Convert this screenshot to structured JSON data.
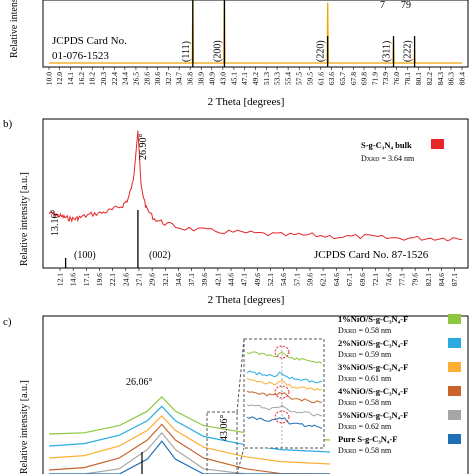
{
  "chart_data": [
    {
      "panel": "a)",
      "type": "line",
      "xlabel": "2 Theta [degrees]",
      "ylabel": "Relative intensity",
      "x_ticks": [
        "10.0",
        "12.0",
        "14.1",
        "16.2",
        "18.2",
        "20.3",
        "22.4",
        "24.4",
        "26.5",
        "28.6",
        "30.6",
        "32.7",
        "34.7",
        "36.8",
        "38.9",
        "40.9",
        "43.0",
        "45.1",
        "47.1",
        "49.2",
        "51.3",
        "53.3",
        "55.4",
        "57.5",
        "59.5",
        "61.6",
        "63.6",
        "65.7",
        "67.8",
        "69.8",
        "71.9",
        "73.9",
        "76.0",
        "78.1",
        "80.1",
        "82.2",
        "84.3",
        "86.3",
        "88.4"
      ],
      "xlim": [
        10.0,
        88.4
      ],
      "series": [
        {
          "color": "#f0a500",
          "x": [
            10,
            37.2,
            37.3,
            37.4,
            43.2,
            43.3,
            43.4,
            62.8,
            62.9,
            63.0,
            75.3,
            75.4,
            75.5,
            79.3,
            79.4,
            79.5,
            88.4
          ],
          "y": [
            0,
            0,
            1,
            0,
            0,
            1,
            0,
            0,
            0.9,
            0,
            0,
            0.35,
            0,
            0,
            0.2,
            0,
            0
          ]
        }
      ],
      "peak_labels": [
        "(111)",
        "(200)",
        "(220)",
        "(311)",
        "(222)"
      ],
      "peak_positions": [
        37.3,
        43.3,
        62.9,
        75.4,
        79.4
      ],
      "top_labels": [
        "7",
        "79"
      ],
      "reference": [
        "JCPDS Card No.",
        "01-076-1523"
      ]
    },
    {
      "panel": "b)",
      "type": "line",
      "xlabel": "2 Theta [degrees]",
      "ylabel": "Relative intensity [a.u.]",
      "x_ticks": [
        "12.1",
        "14.6",
        "17.1",
        "19.6",
        "22.1",
        "24.6",
        "27.1",
        "29.6",
        "32.1",
        "34.6",
        "37.1",
        "39.6",
        "42.1",
        "44.6",
        "47.1",
        "49.6",
        "52.1",
        "54.6",
        "57.1",
        "59.6",
        "62.1",
        "64.6",
        "67.1",
        "69.6",
        "72.1",
        "74.6",
        "77.1",
        "79.6",
        "82.1",
        "84.6",
        "87.1"
      ],
      "xlim": [
        10.0,
        88.5
      ],
      "annotations": [
        "13.16°",
        "26.90°"
      ],
      "peak_labels": [
        "(100)",
        "(002)"
      ],
      "peak_positions": [
        13.16,
        26.9
      ],
      "reference": "JCPDS Card No. 87-1526",
      "legend": {
        "name": "S-g-C₃N₄ bulk",
        "color": "#e8262a",
        "size": "D",
        "size_sub": "XRD",
        "size_value": " = 3.64 nm"
      },
      "series": [
        {
          "color": "#e8262a",
          "x": [
            10,
            11,
            12,
            13,
            14,
            15,
            16,
            18,
            20,
            22,
            24,
            25,
            26,
            26.9,
            27.5,
            28.5,
            30,
            32,
            35,
            40,
            45,
            50,
            55,
            60,
            65,
            70,
            75,
            80,
            85,
            88.5
          ],
          "y": [
            0.37,
            0.36,
            0.35,
            0.34,
            0.33,
            0.33,
            0.34,
            0.36,
            0.37,
            0.39,
            0.42,
            0.46,
            0.58,
            0.93,
            0.55,
            0.4,
            0.33,
            0.3,
            0.27,
            0.25,
            0.24,
            0.23,
            0.22,
            0.22,
            0.21,
            0.21,
            0.2,
            0.2,
            0.2,
            0.2
          ]
        }
      ]
    },
    {
      "panel": "c)",
      "type": "line",
      "ylabel": "Relative intensity [a.u.]",
      "annotations": [
        "26.06°",
        "43.06°"
      ],
      "legend": [
        {
          "name": "1%NiO/S-g-C₃N₄-F",
          "color": "#8dc63f",
          "size": "D",
          "size_sub": "XRD",
          "size_value": " = 0.58 nm"
        },
        {
          "name": "2%NiO/S-g-C₃N₄-F",
          "color": "#29abe2",
          "size": "D",
          "size_sub": "XRD",
          "size_value": " = 0.59 nm"
        },
        {
          "name": "3%NiO/S-g-C₃N₄-F",
          "color": "#fbb034",
          "size": "D",
          "size_sub": "XRD",
          "size_value": " = 0.61 nm"
        },
        {
          "name": "4%NiO/S-g-C₃N₄-F",
          "color": "#c8642a",
          "size": "D",
          "size_sub": "XRD",
          "size_value": " = 0.58 nm"
        },
        {
          "name": "5%NiO/S-g-C₃N₄-F",
          "color": "#a6a6a6",
          "size": "D",
          "size_sub": "XRD",
          "size_value": " = 0.62 nm"
        },
        {
          "name": "Pure S-g-C₃N₄-F",
          "color": "#1f6fb5",
          "size": "D",
          "size_sub": "XRD",
          "size_value": " = 0.58 nm"
        }
      ],
      "series": [
        {
          "color": "#8dc63f",
          "x": [
            10,
            15,
            20,
            24,
            26.06,
            28,
            32,
            38,
            43,
            50
          ],
          "y": [
            0.55,
            0.56,
            0.62,
            0.74,
            0.86,
            0.74,
            0.62,
            0.56,
            0.52,
            0.5
          ]
        },
        {
          "color": "#29abe2",
          "x": [
            10,
            15,
            20,
            24,
            26.06,
            28,
            32,
            38,
            43,
            50
          ],
          "y": [
            0.45,
            0.47,
            0.54,
            0.66,
            0.78,
            0.66,
            0.53,
            0.46,
            0.42,
            0.4
          ]
        },
        {
          "color": "#fbb034",
          "x": [
            10,
            15,
            20,
            24,
            26.06,
            28,
            32,
            38,
            43,
            50
          ],
          "y": [
            0.35,
            0.37,
            0.45,
            0.58,
            0.7,
            0.58,
            0.44,
            0.36,
            0.32,
            0.3
          ]
        },
        {
          "color": "#c8642a",
          "x": [
            10,
            15,
            20,
            24,
            26.06,
            28,
            32,
            38,
            43,
            50
          ],
          "y": [
            0.25,
            0.27,
            0.35,
            0.5,
            0.63,
            0.5,
            0.35,
            0.26,
            0.22,
            0.2
          ]
        },
        {
          "color": "#a6a6a6",
          "x": [
            10,
            15,
            20,
            24,
            26.06,
            28,
            32,
            38,
            43,
            50
          ],
          "y": [
            0.15,
            0.17,
            0.26,
            0.42,
            0.56,
            0.42,
            0.26,
            0.16,
            0.12,
            0.1
          ]
        },
        {
          "color": "#1f6fb5",
          "x": [
            10,
            15,
            20,
            24,
            26.06,
            28,
            32,
            38,
            43,
            50
          ],
          "y": [
            0.05,
            0.07,
            0.17,
            0.34,
            0.49,
            0.34,
            0.17,
            0.06,
            0.03,
            0.02
          ]
        }
      ]
    }
  ]
}
